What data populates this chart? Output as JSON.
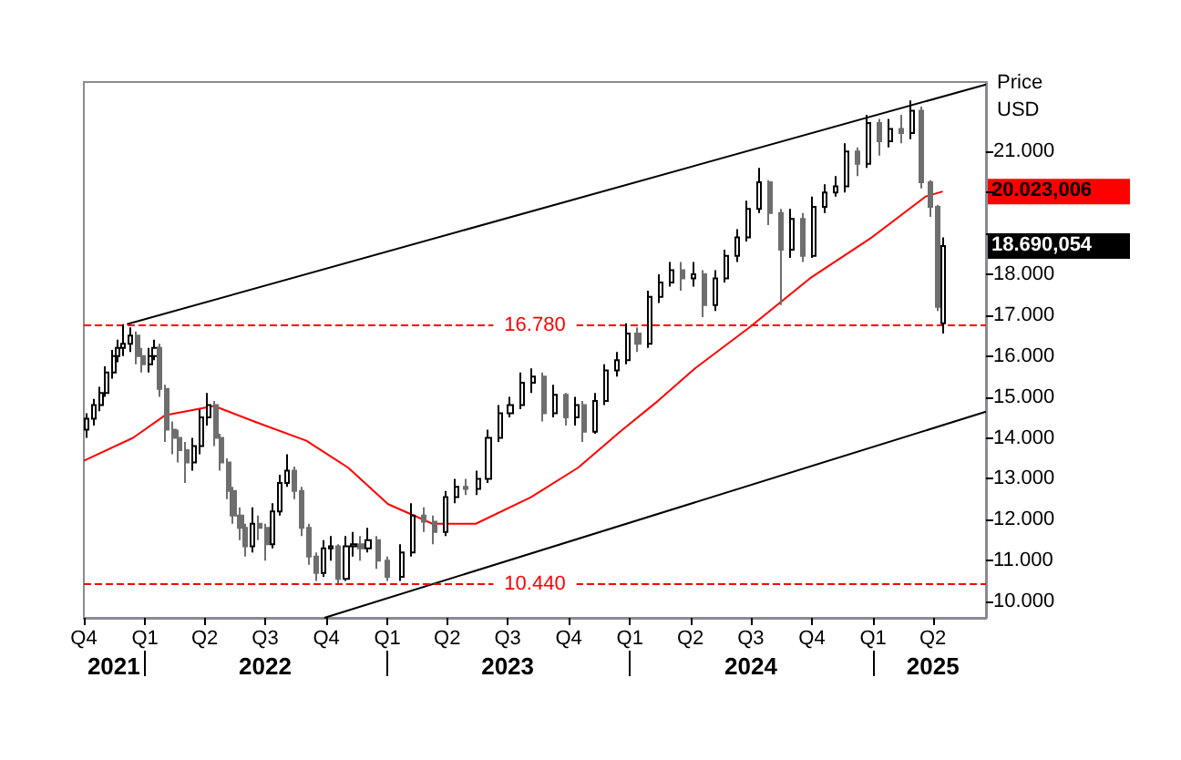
{
  "chart_data": {
    "type": "candlestick",
    "ylabel": "Price",
    "annotations": [
      "USD",
      {
        "text": "20.023,006",
        "x": "2025-04-16",
        "y": 20023.006
      },
      {
        "text": "18.690,054",
        "x": "2025-04-16",
        "y": 18690.054
      }
    ],
    "x": [
      "2021-10-06",
      "2021-10-17",
      "2021-10-26",
      "2021-11-03",
      "2021-11-14",
      "2021-11-22",
      "2021-11-30",
      "2021-12-11",
      "2021-12-20",
      "2021-12-28",
      "2022-01-08",
      "2022-01-16",
      "2022-01-24",
      "2022-02-02",
      "2022-02-13",
      "2022-02-21",
      "2022-03-04",
      "2022-03-15",
      "2022-03-26",
      "2022-04-06",
      "2022-04-17",
      "2022-04-25",
      "2022-05-06",
      "2022-05-14",
      "2022-05-25",
      "2022-06-02",
      "2022-06-13",
      "2022-06-22",
      "2022-07-03",
      "2022-07-13",
      "2022-07-24",
      "2022-08-04",
      "2022-08-15",
      "2022-08-26",
      "2022-09-06",
      "2022-09-17",
      "2022-09-28",
      "2022-10-09",
      "2022-10-20",
      "2022-10-31",
      "2022-11-11",
      "2022-11-22",
      "2022-12-03",
      "2022-12-17",
      "2023-01-02",
      "2023-01-22",
      "2023-02-07",
      "2023-02-24",
      "2023-03-12",
      "2023-03-29",
      "2023-04-14",
      "2023-04-30",
      "2023-05-17",
      "2023-06-02",
      "2023-06-19",
      "2023-07-05",
      "2023-07-22",
      "2023-08-07",
      "2023-08-24",
      "2023-09-09",
      "2023-09-26",
      "2023-10-12",
      "2023-10-23",
      "2023-11-09",
      "2023-11-25",
      "2023-12-12",
      "2023-12-28",
      "2024-01-13",
      "2024-01-30",
      "2024-02-15",
      "2024-03-03",
      "2024-03-19",
      "2024-04-05",
      "2024-04-21",
      "2024-05-08",
      "2024-05-24",
      "2024-06-10",
      "2024-06-26",
      "2024-07-13",
      "2024-07-29",
      "2024-08-15",
      "2024-08-31",
      "2024-09-17",
      "2024-10-03",
      "2024-10-20",
      "2024-11-05",
      "2024-11-21",
      "2024-12-08",
      "2024-12-24",
      "2025-01-10",
      "2025-01-26",
      "2025-02-12",
      "2025-02-28",
      "2025-03-14",
      "2025-03-28",
      "2025-04-08",
      "2025-04-16"
    ],
    "ohlc": [
      [
        14200,
        14600,
        14000,
        14470
      ],
      [
        14470,
        14950,
        14300,
        14800
      ],
      [
        14800,
        15250,
        14650,
        15100
      ],
      [
        15100,
        15750,
        15000,
        15600
      ],
      [
        15600,
        16150,
        15450,
        16000
      ],
      [
        16000,
        16400,
        15850,
        16200
      ],
      [
        16200,
        16780,
        16000,
        16300
      ],
      [
        16300,
        16700,
        16100,
        16500
      ],
      [
        16500,
        16600,
        15800,
        16000
      ],
      [
        16000,
        16200,
        15600,
        15800
      ],
      [
        15800,
        16200,
        15600,
        16000
      ],
      [
        16000,
        16400,
        15900,
        16200
      ],
      [
        16200,
        16300,
        15000,
        15200
      ],
      [
        15200,
        15300,
        13900,
        14200
      ],
      [
        14200,
        14400,
        13600,
        14000
      ],
      [
        14000,
        14200,
        13400,
        13700
      ],
      [
        13700,
        13900,
        12900,
        13400
      ],
      [
        13400,
        14000,
        13200,
        13800
      ],
      [
        13800,
        14700,
        13600,
        14500
      ],
      [
        14500,
        15100,
        14300,
        14800
      ],
      [
        14800,
        14900,
        13800,
        14000
      ],
      [
        14000,
        14100,
        13200,
        13400
      ],
      [
        13400,
        13500,
        12500,
        12700
      ],
      [
        12700,
        12800,
        11900,
        12100
      ],
      [
        12100,
        12300,
        11500,
        11800
      ],
      [
        11800,
        11900,
        11100,
        11350
      ],
      [
        11350,
        12300,
        11200,
        11900
      ],
      [
        11900,
        12100,
        11500,
        11800
      ],
      [
        11800,
        11900,
        11000,
        11400
      ],
      [
        11400,
        12400,
        11300,
        12200
      ],
      [
        12200,
        13100,
        12100,
        12900
      ],
      [
        12900,
        13600,
        12800,
        13200
      ],
      [
        13200,
        13300,
        12500,
        12700
      ],
      [
        12700,
        12800,
        11600,
        11800
      ],
      [
        11800,
        11900,
        10900,
        11100
      ],
      [
        11100,
        11200,
        10500,
        10700
      ],
      [
        10700,
        11500,
        10600,
        11300
      ],
      [
        11300,
        11600,
        11000,
        11350
      ],
      [
        11350,
        11400,
        10440,
        10550
      ],
      [
        10550,
        11600,
        10500,
        11350
      ],
      [
        11350,
        11700,
        11100,
        11400
      ],
      [
        11400,
        11600,
        11000,
        11300
      ],
      [
        11300,
        11800,
        11200,
        11500
      ],
      [
        11500,
        11600,
        10800,
        11000
      ],
      [
        11000,
        11100,
        10500,
        10600
      ],
      [
        10600,
        11400,
        10500,
        11200
      ],
      [
        11200,
        12400,
        11100,
        12100
      ],
      [
        12100,
        12300,
        11700,
        11950
      ],
      [
        11950,
        12100,
        11400,
        11700
      ],
      [
        11700,
        12700,
        11600,
        12550
      ],
      [
        12550,
        13000,
        12400,
        12800
      ],
      [
        12800,
        13000,
        12600,
        12750
      ],
      [
        12750,
        13200,
        12600,
        13000
      ],
      [
        13000,
        14200,
        12900,
        14000
      ],
      [
        14000,
        14800,
        13900,
        14600
      ],
      [
        14600,
        15000,
        14500,
        14800
      ],
      [
        14800,
        15600,
        14700,
        15350
      ],
      [
        15350,
        15700,
        15100,
        15500
      ],
      [
        15500,
        15600,
        14400,
        14600
      ],
      [
        14600,
        15300,
        14500,
        15050
      ],
      [
        15050,
        15100,
        14300,
        14500
      ],
      [
        14500,
        15000,
        14300,
        14800
      ],
      [
        14800,
        14900,
        13900,
        14150
      ],
      [
        14150,
        15100,
        14100,
        14900
      ],
      [
        14900,
        15800,
        14800,
        15650
      ],
      [
        15650,
        16100,
        15500,
        15900
      ],
      [
        15900,
        16800,
        15800,
        16550
      ],
      [
        16550,
        16700,
        16100,
        16300
      ],
      [
        16300,
        17600,
        16200,
        17450
      ],
      [
        17450,
        18000,
        17300,
        17800
      ],
      [
        17800,
        18300,
        17700,
        18100
      ],
      [
        18100,
        18300,
        17600,
        17900
      ],
      [
        17900,
        18300,
        17700,
        18000
      ],
      [
        18000,
        18100,
        16950,
        17250
      ],
      [
        17250,
        18100,
        17100,
        17900
      ],
      [
        17900,
        18600,
        17800,
        18450
      ],
      [
        18450,
        19100,
        18300,
        18900
      ],
      [
        18900,
        19800,
        18800,
        19600
      ],
      [
        19600,
        20600,
        19500,
        20250
      ],
      [
        20250,
        20300,
        19200,
        19500
      ],
      [
        19500,
        19600,
        17250,
        18600
      ],
      [
        18600,
        19600,
        18400,
        19350
      ],
      [
        19350,
        19500,
        18300,
        18450
      ],
      [
        18450,
        19900,
        18400,
        19650
      ],
      [
        19650,
        20200,
        19500,
        20000
      ],
      [
        20000,
        20400,
        19900,
        20150
      ],
      [
        20150,
        21200,
        20000,
        21000
      ],
      [
        21000,
        21100,
        20400,
        20700
      ],
      [
        20700,
        21900,
        20600,
        21700
      ],
      [
        21700,
        21800,
        20900,
        21250
      ],
      [
        21250,
        21800,
        21100,
        21550
      ],
      [
        21550,
        21900,
        21200,
        21450
      ],
      [
        21450,
        22250,
        21300,
        22000
      ],
      [
        22000,
        22100,
        20100,
        20250
      ],
      [
        20250,
        20300,
        19400,
        19650
      ],
      [
        19650,
        19700,
        17100,
        17200
      ],
      [
        16800,
        18900,
        16550,
        18690.054
      ]
    ],
    "series": [
      {
        "type": "line",
        "color": "#ff0000",
        "x": [
          "2021-10-01",
          "2021-12-14",
          "2022-01-31",
          "2022-04-15",
          "2022-06-18",
          "2022-09-01",
          "2022-11-03",
          "2023-01-02",
          "2023-03-10",
          "2023-05-14",
          "2023-08-05",
          "2023-10-15",
          "2023-12-18",
          "2024-02-12",
          "2024-04-08",
          "2024-06-29",
          "2024-09-28",
          "2024-12-30",
          "2025-03-21",
          "2025-04-16"
        ],
        "values": [
          13440,
          14000,
          14550,
          14780,
          14380,
          13930,
          13270,
          12380,
          11900,
          11900,
          12550,
          13270,
          14160,
          14900,
          15700,
          16700,
          17900,
          18900,
          19900,
          20023.006
        ]
      },
      {
        "type": "line",
        "color": "#000000",
        "x": [
          "2021-12-05",
          "2025-06-20"
        ],
        "values": [
          16780,
          22640
        ]
      },
      {
        "type": "line",
        "color": "#000000",
        "x": [
          "2022-09-28",
          "2025-06-20"
        ],
        "values": [
          9600,
          14640
        ]
      }
    ],
    "ref_lines": [
      {
        "axis": "y",
        "value": 16780,
        "label": "16.780",
        "color": "#ff0000",
        "line_style": "dashed"
      },
      {
        "axis": "y",
        "value": 10440,
        "label": "10.440",
        "color": "#ff0000",
        "line_style": "dashed"
      }
    ],
    "xlim": [
      "2021-10-01",
      "2025-06-20"
    ],
    "xticks": [
      {
        "value": "2021-10-01",
        "label": "Q4"
      },
      {
        "value": "2022-01-01",
        "label": "Q1"
      },
      {
        "value": "2022-04-01",
        "label": "Q2"
      },
      {
        "value": "2022-07-01",
        "label": "Q3"
      },
      {
        "value": "2022-10-01",
        "label": "Q4"
      },
      {
        "value": "2023-01-01",
        "label": "Q1"
      },
      {
        "value": "2023-04-01",
        "label": "Q2"
      },
      {
        "value": "2023-07-01",
        "label": "Q3"
      },
      {
        "value": "2023-10-01",
        "label": "Q4"
      },
      {
        "value": "2024-01-01",
        "label": "Q1"
      },
      {
        "value": "2024-04-01",
        "label": "Q2"
      },
      {
        "value": "2024-07-01",
        "label": "Q3"
      },
      {
        "value": "2024-10-01",
        "label": "Q4"
      },
      {
        "value": "2025-01-01",
        "label": "Q1"
      },
      {
        "value": "2025-04-01",
        "label": "Q2"
      }
    ],
    "x2lim": [
      "2021-10-01",
      "2025-06-20"
    ],
    "x2ticks": [
      {
        "value": "2021-11-15",
        "label": "2021"
      },
      {
        "value": "2022-01-01",
        "label": null
      },
      {
        "value": "2022-07-01",
        "label": "2022"
      },
      {
        "value": "2023-01-01",
        "label": null
      },
      {
        "value": "2023-07-01",
        "label": "2023"
      },
      {
        "value": "2024-01-01",
        "label": null
      },
      {
        "value": "2024-07-01",
        "label": "2024"
      },
      {
        "value": "2025-01-01",
        "label": null
      },
      {
        "value": "2025-04-01",
        "label": "2025"
      }
    ],
    "ylim": [
      9600,
      22700
    ],
    "yticks": [
      {
        "value": 10000,
        "label": "10.000"
      },
      {
        "value": 11000,
        "label": "11.000"
      },
      {
        "value": 12000,
        "label": "12.000"
      },
      {
        "value": 13000,
        "label": "13.000"
      },
      {
        "value": 14000,
        "label": "14.000"
      },
      {
        "value": 15000,
        "label": "15.000"
      },
      {
        "value": 16000,
        "label": "16.000"
      },
      {
        "value": 17000,
        "label": "17.000"
      },
      {
        "value": 18000,
        "label": "18.000"
      },
      {
        "value": 19000,
        "label": null
      },
      {
        "value": 20000,
        "label": null
      },
      {
        "value": 21000,
        "label": "21.000"
      }
    ]
  }
}
